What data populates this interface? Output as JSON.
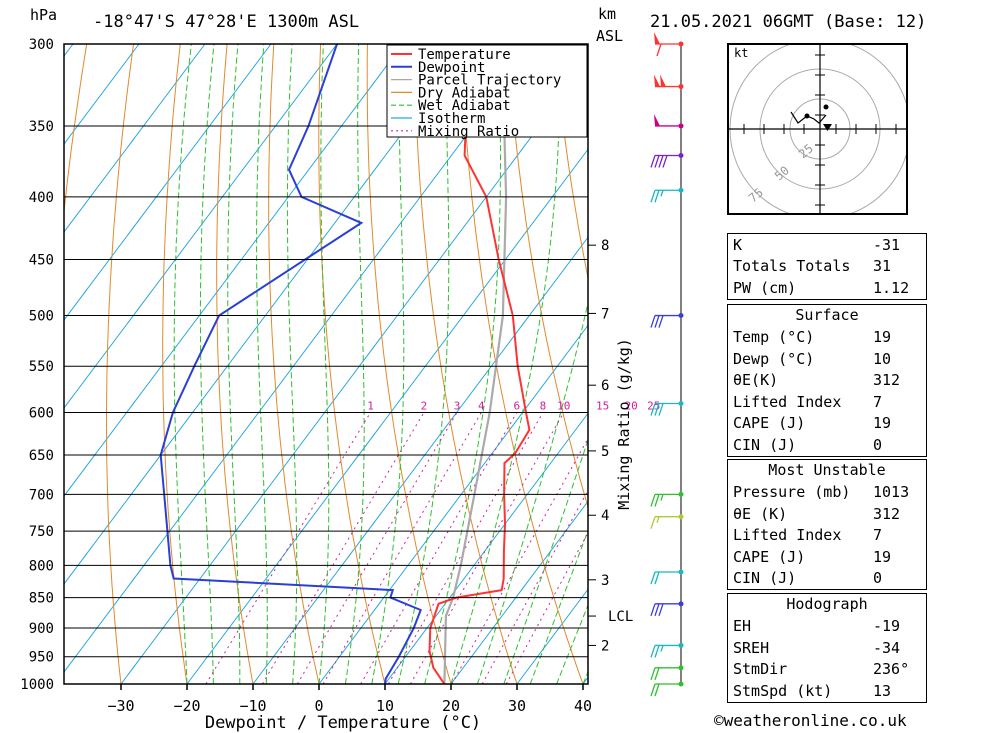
{
  "header": {
    "pressure_unit": "hPa",
    "location": "-18°47'S  47°28'E  1300m  ASL",
    "km_label": "km",
    "asl_label": "ASL",
    "datetime": "21.05.2021  06GMT  (Base: 12)"
  },
  "hodograph": {
    "unit_label": "kt",
    "ring_labels": [
      "25",
      "50",
      "75"
    ]
  },
  "chart_data": {
    "type": "line",
    "title": "",
    "xlabel": "Dewpoint / Temperature (°C)",
    "ylabel": "Mixing Ratio (g/kg)",
    "x_ticks": [
      -30,
      -20,
      -10,
      0,
      10,
      20,
      30,
      40
    ],
    "p_ticks": [
      300,
      350,
      400,
      450,
      500,
      550,
      600,
      650,
      700,
      750,
      800,
      850,
      900,
      950,
      1000
    ],
    "ylim_hpa": [
      1000,
      300
    ],
    "km_ticks": [
      {
        "p": 438,
        "label": "8"
      },
      {
        "p": 498,
        "label": "7"
      },
      {
        "p": 570,
        "label": "6"
      },
      {
        "p": 645,
        "label": "5"
      },
      {
        "p": 728,
        "label": "4"
      },
      {
        "p": 822,
        "label": "3"
      },
      {
        "p": 880,
        "label": "LCL"
      },
      {
        "p": 930,
        "label": "2"
      }
    ],
    "mixing_ratio_labels": [
      "1",
      "2",
      "3",
      "4",
      "6",
      "8",
      "10",
      "15",
      "20",
      "25"
    ],
    "mixing_ratio_values": [
      1,
      2,
      3,
      4,
      6,
      8,
      10,
      15,
      20,
      25
    ],
    "legend": [
      "Temperature",
      "Dewpoint",
      "Parcel Trajectory",
      "Dry Adiabat",
      "Wet Adiabat",
      "Isotherm",
      "Mixing Ratio"
    ],
    "colors": {
      "Temperature": "#ff3333",
      "Dewpoint": "#2a3fd6",
      "Parcel Trajectory": "#aaaaaa",
      "Dry Adiabat": "#e08a2c",
      "Wet Adiabat": "#2fbf2f",
      "Isotherm": "#2ba8e0",
      "Mixing Ratio": "#d0209f"
    },
    "series": [
      {
        "name": "Temperature",
        "points": [
          [
            1000,
            19
          ],
          [
            970,
            15.5
          ],
          [
            940,
            13
          ],
          [
            900,
            10.5
          ],
          [
            860,
            9
          ],
          [
            850,
            11
          ],
          [
            838,
            17
          ],
          [
            820,
            16
          ],
          [
            780,
            13
          ],
          [
            740,
            10
          ],
          [
            700,
            6.5
          ],
          [
            660,
            3
          ],
          [
            648,
            3.5
          ],
          [
            620,
            3
          ],
          [
            600,
            0.5
          ],
          [
            550,
            -6
          ],
          [
            500,
            -12.5
          ],
          [
            450,
            -21
          ],
          [
            400,
            -30
          ],
          [
            370,
            -38
          ],
          [
            300,
            -50
          ]
        ]
      },
      {
        "name": "Dewpoint",
        "points": [
          [
            1000,
            10
          ],
          [
            990,
            9.5
          ],
          [
            950,
            9
          ],
          [
            900,
            8
          ],
          [
            870,
            7
          ],
          [
            850,
            1
          ],
          [
            838,
            0.5
          ],
          [
            820,
            -34
          ],
          [
            800,
            -36
          ],
          [
            700,
            -45
          ],
          [
            650,
            -50
          ],
          [
            600,
            -53
          ],
          [
            550,
            -55
          ],
          [
            500,
            -57
          ],
          [
            420,
            -46
          ],
          [
            400,
            -58
          ],
          [
            380,
            -63
          ],
          [
            350,
            -65
          ],
          [
            300,
            -70
          ]
        ]
      },
      {
        "name": "Parcel Trajectory",
        "points": [
          [
            1000,
            19
          ],
          [
            880,
            11.5
          ],
          [
            850,
            10.5
          ],
          [
            800,
            8
          ],
          [
            700,
            2
          ],
          [
            600,
            -5
          ],
          [
            500,
            -14
          ],
          [
            400,
            -27
          ],
          [
            300,
            -45
          ]
        ]
      }
    ],
    "wind_barbs": [
      {
        "p": 300,
        "color": "#ff3333",
        "pennants": 1,
        "full": 1,
        "half": 0
      },
      {
        "p": 325,
        "color": "#ff3333",
        "pennants": 2,
        "full": 0,
        "half": 0
      },
      {
        "p": 350,
        "color": "#cc0088",
        "pennants": 1,
        "full": 0,
        "half": 0
      },
      {
        "p": 370,
        "color": "#7a1fd6",
        "pennants": 0,
        "full": 4,
        "half": 0
      },
      {
        "p": 395,
        "color": "#18b8c0",
        "pennants": 0,
        "full": 2,
        "half": 1
      },
      {
        "p": 500,
        "color": "#3b3be0",
        "pennants": 0,
        "full": 3,
        "half": 0
      },
      {
        "p": 590,
        "color": "#18b8c0",
        "pennants": 0,
        "full": 3,
        "half": 0
      },
      {
        "p": 700,
        "color": "#2fbf2f",
        "pennants": 0,
        "full": 2,
        "half": 1
      },
      {
        "p": 730,
        "color": "#aacc33",
        "pennants": 0,
        "full": 1,
        "half": 1
      },
      {
        "p": 810,
        "color": "#18b8c0",
        "pennants": 0,
        "full": 2,
        "half": 0
      },
      {
        "p": 860,
        "color": "#3b3be0",
        "pennants": 0,
        "full": 3,
        "half": 0
      },
      {
        "p": 930,
        "color": "#18b8c0",
        "pennants": 0,
        "full": 2,
        "half": 1
      },
      {
        "p": 970,
        "color": "#2fbf2f",
        "pennants": 0,
        "full": 2,
        "half": 0
      },
      {
        "p": 1000,
        "color": "#2fbf2f",
        "pennants": 0,
        "full": 2,
        "half": 0
      }
    ]
  },
  "indices": [
    {
      "label": "K",
      "value": "-31"
    },
    {
      "label": "Totals Totals",
      "value": "31"
    },
    {
      "label": "PW (cm)",
      "value": "1.12"
    }
  ],
  "surface": {
    "title": "Surface",
    "rows": [
      {
        "label": "Temp (°C)",
        "value": "19"
      },
      {
        "label": "Dewp (°C)",
        "value": "10"
      },
      {
        "label": "θE(K)",
        "value": "312"
      },
      {
        "label": "Lifted Index",
        "value": "7"
      },
      {
        "label": "CAPE (J)",
        "value": "19"
      },
      {
        "label": "CIN (J)",
        "value": "0"
      }
    ]
  },
  "most_unstable": {
    "title": "Most Unstable",
    "rows": [
      {
        "label": "Pressure (mb)",
        "value": "1013"
      },
      {
        "label": "θE (K)",
        "value": "312"
      },
      {
        "label": "Lifted Index",
        "value": "7"
      },
      {
        "label": "CAPE (J)",
        "value": "19"
      },
      {
        "label": "CIN (J)",
        "value": "0"
      }
    ]
  },
  "hodograph_table": {
    "title": "Hodograph",
    "rows": [
      {
        "label": "EH",
        "value": "-19"
      },
      {
        "label": "SREH",
        "value": "-34"
      },
      {
        "label": "StmDir",
        "value": "236°"
      },
      {
        "label": "StmSpd (kt)",
        "value": "13"
      }
    ]
  },
  "credit": "©weatheronline.co.uk"
}
